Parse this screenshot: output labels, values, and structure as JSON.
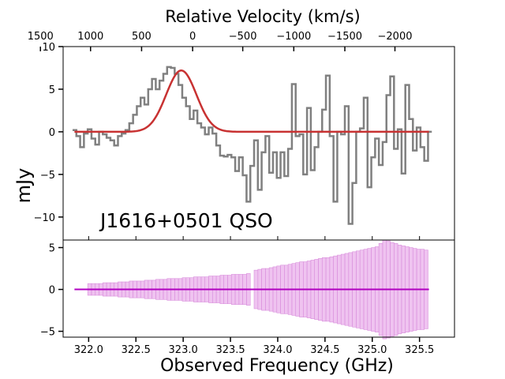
{
  "chart_data": {
    "type": "line",
    "title": "Relative Velocity (km/s)",
    "xlabel": "Observed Frequency (GHz)",
    "ylabel": "mJy",
    "annotation": "J1616+0501 QSO",
    "top_axis": {
      "label": "Relative Velocity (km/s)",
      "ticks": [
        {
          "freq": 321.49,
          "label": "1500"
        },
        {
          "freq": 322.02,
          "label": "1000"
        },
        {
          "freq": 322.56,
          "label": "500"
        },
        {
          "freq": 323.1,
          "label": "0"
        },
        {
          "freq": 323.63,
          "label": "−500"
        },
        {
          "freq": 324.17,
          "label": "−1000"
        },
        {
          "freq": 324.71,
          "label": "−1500"
        },
        {
          "freq": 325.24,
          "label": "−2000"
        }
      ]
    },
    "x_ticks": [
      "322.0",
      "322.5",
      "323.0",
      "323.5",
      "324.0",
      "324.5",
      "325.0",
      "325.5"
    ],
    "x_tick_values": [
      322.0,
      322.5,
      323.0,
      323.5,
      324.0,
      324.5,
      325.0,
      325.5
    ],
    "xlim": [
      321.73,
      325.87
    ],
    "top_panel": {
      "ylim": [
        -12.7,
        10
      ],
      "y_ticks": [
        10,
        5,
        0,
        -5,
        -10
      ],
      "y_tick_labels": [
        "10",
        "5",
        "0",
        "−5",
        "−10"
      ],
      "series": [
        {
          "name": "spectrum",
          "style": "step",
          "color": "#808080",
          "x": [
            321.85,
            321.89,
            321.93,
            321.97,
            322.01,
            322.05,
            322.09,
            322.13,
            322.17,
            322.21,
            322.25,
            322.29,
            322.33,
            322.37,
            322.41,
            322.45,
            322.49,
            322.53,
            322.57,
            322.61,
            322.65,
            322.69,
            322.73,
            322.77,
            322.81,
            322.85,
            322.89,
            322.93,
            322.97,
            323.01,
            323.05,
            323.09,
            323.13,
            323.17,
            323.21,
            323.25,
            323.29,
            323.33,
            323.37,
            323.41,
            323.45,
            323.49,
            323.53,
            323.57,
            323.61,
            323.65,
            323.69,
            323.73,
            323.77,
            323.81,
            323.85,
            323.89,
            323.93,
            323.97,
            324.01,
            324.05,
            324.09,
            324.13,
            324.17,
            324.21,
            324.25,
            324.29,
            324.33,
            324.37,
            324.41,
            324.45,
            324.49,
            324.53,
            324.57,
            324.61,
            324.65,
            324.69,
            324.73,
            324.77,
            324.81,
            324.85,
            324.89,
            324.93,
            324.97,
            325.01,
            325.05,
            325.09,
            325.13,
            325.17,
            325.21,
            325.25,
            325.29,
            325.33,
            325.37,
            325.41,
            325.45,
            325.49,
            325.53,
            325.57,
            325.61
          ],
          "values": [
            0.2,
            -0.5,
            -1.8,
            -0.2,
            0.3,
            -0.8,
            -1.5,
            0.0,
            -0.3,
            -0.7,
            -1.0,
            -1.6,
            -0.5,
            -0.2,
            0.2,
            1.0,
            2.0,
            3.0,
            4.0,
            3.2,
            5.0,
            6.2,
            5.0,
            6.0,
            6.8,
            7.6,
            7.5,
            6.8,
            5.5,
            4.0,
            3.0,
            1.5,
            2.5,
            1.0,
            0.5,
            -0.3,
            0.5,
            -0.2,
            -1.6,
            -2.8,
            -2.9,
            -2.7,
            -3.0,
            -4.6,
            -3.0,
            -5.1,
            -8.2,
            -4.0,
            -1.0,
            -6.8,
            -2.4,
            -0.5,
            -4.8,
            -2.4,
            -5.4,
            -2.4,
            -5.2,
            -2.0,
            5.6,
            -0.5,
            -0.3,
            -5.0,
            2.8,
            -4.5,
            -1.8,
            0.0,
            2.6,
            6.6,
            -0.5,
            -8.2,
            0.0,
            -0.3,
            3.0,
            -10.8,
            -6.0,
            0.0,
            0.4,
            4.0,
            -6.5,
            -3.0,
            -0.8,
            -3.9,
            -1.2,
            4.3,
            6.5,
            -2.0,
            0.3,
            -4.9,
            5.5,
            1.5,
            -2.2,
            0.5,
            -1.8,
            -3.4,
            0.0
          ]
        },
        {
          "name": "gaussian fit",
          "style": "line",
          "color": "#c83232",
          "model": {
            "amplitude": 7.2,
            "center": 322.98,
            "sigma": 0.16
          },
          "x_range": [
            321.85,
            325.6
          ]
        }
      ]
    },
    "bottom_panel": {
      "ylim": [
        -5.7,
        5.9
      ],
      "y_ticks": [
        5,
        0,
        -5
      ],
      "y_tick_labels": [
        "5",
        "0",
        "−5"
      ],
      "series": [
        {
          "name": "noise (rms)",
          "style": "bars",
          "color": "#e49be6",
          "x": [
            321.85,
            321.89,
            321.93,
            321.97,
            322.01,
            322.05,
            322.09,
            322.13,
            322.17,
            322.21,
            322.25,
            322.29,
            322.33,
            322.37,
            322.41,
            322.45,
            322.49,
            322.53,
            322.57,
            322.61,
            322.65,
            322.69,
            322.73,
            322.77,
            322.81,
            322.85,
            322.89,
            322.93,
            322.97,
            323.01,
            323.05,
            323.09,
            323.13,
            323.17,
            323.21,
            323.25,
            323.29,
            323.33,
            323.37,
            323.41,
            323.45,
            323.49,
            323.53,
            323.57,
            323.61,
            323.65,
            323.69,
            323.73,
            323.77,
            323.81,
            323.85,
            323.89,
            323.93,
            323.97,
            324.01,
            324.05,
            324.09,
            324.13,
            324.17,
            324.21,
            324.25,
            324.29,
            324.33,
            324.37,
            324.41,
            324.45,
            324.49,
            324.53,
            324.57,
            324.61,
            324.65,
            324.69,
            324.73,
            324.77,
            324.81,
            324.85,
            324.89,
            324.93,
            324.97,
            325.01,
            325.05,
            325.09,
            325.13,
            325.17,
            325.21,
            325.25,
            325.29,
            325.33,
            325.37,
            325.41,
            325.45,
            325.49,
            325.53,
            325.57,
            325.61
          ],
          "values": [
            0,
            0,
            0,
            0,
            0.7,
            0.7,
            0.7,
            0.7,
            0.8,
            0.8,
            0.8,
            0.8,
            0.9,
            0.9,
            0.9,
            1.0,
            1.0,
            1.0,
            1.0,
            1.1,
            1.1,
            1.1,
            1.2,
            1.2,
            1.2,
            1.3,
            1.3,
            1.3,
            1.3,
            1.4,
            1.4,
            1.4,
            1.5,
            1.5,
            1.5,
            1.5,
            1.6,
            1.6,
            1.6,
            1.7,
            1.7,
            1.7,
            1.8,
            1.8,
            1.8,
            1.8,
            1.9,
            0,
            2.3,
            2.4,
            2.5,
            2.5,
            2.6,
            2.7,
            2.8,
            2.9,
            2.9,
            3.0,
            3.1,
            3.2,
            3.3,
            3.3,
            3.4,
            3.5,
            3.6,
            3.7,
            3.8,
            3.8,
            3.9,
            4.0,
            4.1,
            4.2,
            4.3,
            4.4,
            4.5,
            4.6,
            4.7,
            4.8,
            4.9,
            5.0,
            5.1,
            5.5,
            5.9,
            5.8,
            5.6,
            5.5,
            5.3,
            5.2,
            5.1,
            5.0,
            4.9,
            4.8,
            4.8,
            4.7,
            0
          ]
        },
        {
          "name": "zero level",
          "style": "line",
          "color": "#b000c0",
          "value": 0,
          "x_range": [
            321.85,
            325.6
          ]
        }
      ]
    }
  }
}
